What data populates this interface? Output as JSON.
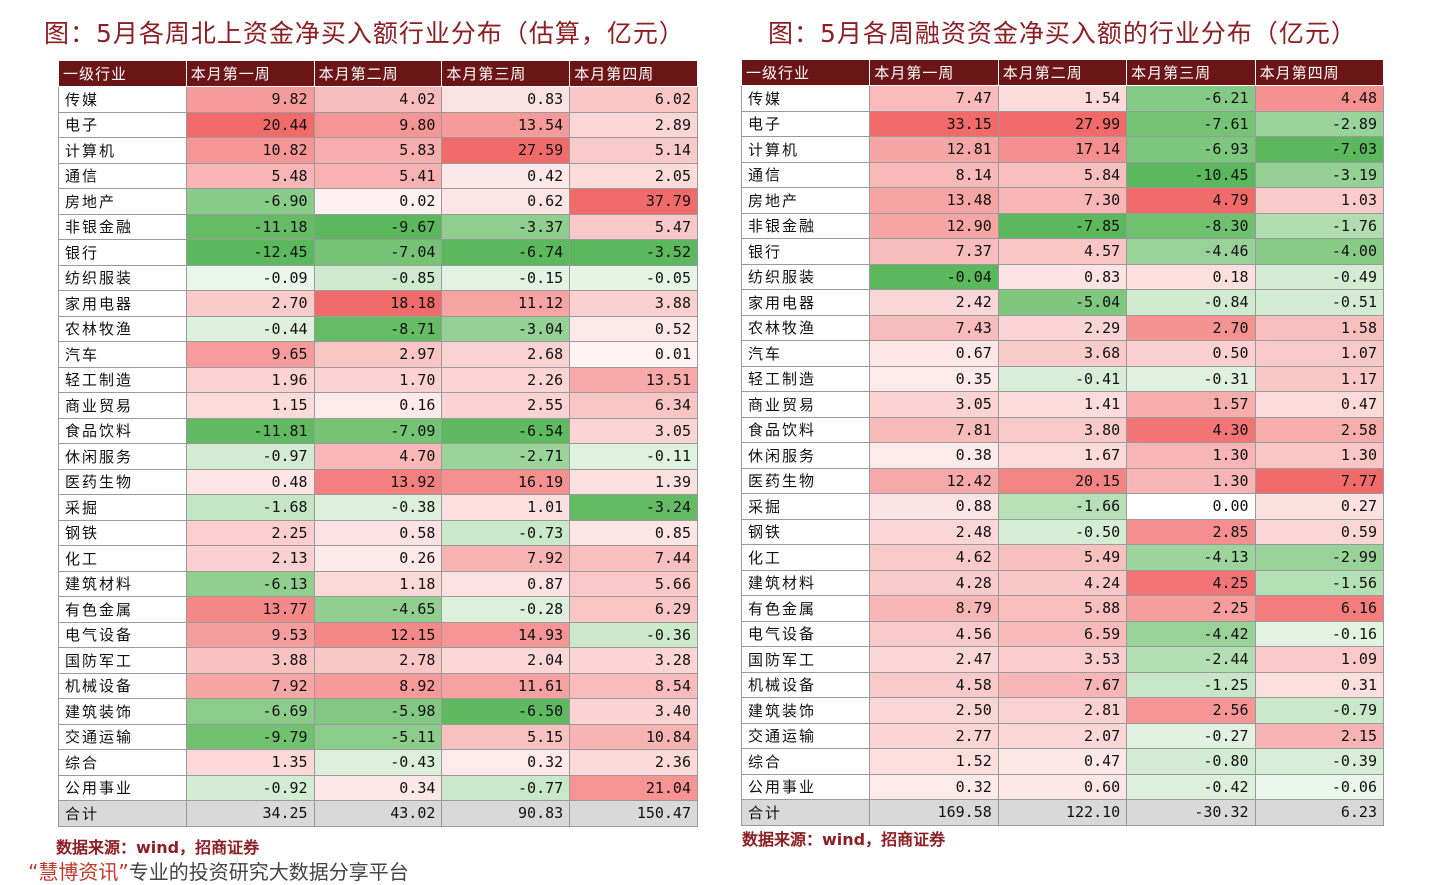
{
  "left": {
    "title": "图：5月各周北上资金净买入额行业分布（估算，亿元）",
    "headers": [
      "一级行业",
      "本月第一周",
      "本月第二周",
      "本月第三周",
      "本月第四周"
    ],
    "rows": [
      {
        "industry": "传媒",
        "values": [
          "9.82",
          "4.02",
          "0.83",
          "6.02"
        ]
      },
      {
        "industry": "电子",
        "values": [
          "20.44",
          "9.80",
          "13.54",
          "2.89"
        ]
      },
      {
        "industry": "计算机",
        "values": [
          "10.82",
          "5.83",
          "27.59",
          "5.14"
        ]
      },
      {
        "industry": "通信",
        "values": [
          "5.48",
          "5.41",
          "0.42",
          "2.05"
        ]
      },
      {
        "industry": "房地产",
        "values": [
          "-6.90",
          "0.02",
          "0.62",
          "37.79"
        ]
      },
      {
        "industry": "非银金融",
        "values": [
          "-11.18",
          "-9.67",
          "-3.37",
          "5.47"
        ]
      },
      {
        "industry": "银行",
        "values": [
          "-12.45",
          "-7.04",
          "-6.74",
          "-3.52"
        ]
      },
      {
        "industry": "纺织服装",
        "values": [
          "-0.09",
          "-0.85",
          "-0.15",
          "-0.05"
        ]
      },
      {
        "industry": "家用电器",
        "values": [
          "2.70",
          "18.18",
          "11.12",
          "3.88"
        ]
      },
      {
        "industry": "农林牧渔",
        "values": [
          "-0.44",
          "-8.71",
          "-3.04",
          "0.52"
        ]
      },
      {
        "industry": "汽车",
        "values": [
          "9.65",
          "2.97",
          "2.68",
          "0.01"
        ]
      },
      {
        "industry": "轻工制造",
        "values": [
          "1.96",
          "1.70",
          "2.26",
          "13.51"
        ]
      },
      {
        "industry": "商业贸易",
        "values": [
          "1.15",
          "0.16",
          "2.55",
          "6.34"
        ]
      },
      {
        "industry": "食品饮料",
        "values": [
          "-11.81",
          "-7.09",
          "-6.54",
          "3.05"
        ]
      },
      {
        "industry": "休闲服务",
        "values": [
          "-0.97",
          "4.70",
          "-2.71",
          "-0.11"
        ]
      },
      {
        "industry": "医药生物",
        "values": [
          "0.48",
          "13.92",
          "16.19",
          "1.39"
        ]
      },
      {
        "industry": "采掘",
        "values": [
          "-1.68",
          "-0.38",
          "1.01",
          "-3.24"
        ]
      },
      {
        "industry": "钢铁",
        "values": [
          "2.25",
          "0.58",
          "-0.73",
          "0.85"
        ]
      },
      {
        "industry": "化工",
        "values": [
          "2.13",
          "0.26",
          "7.92",
          "7.44"
        ]
      },
      {
        "industry": "建筑材料",
        "values": [
          "-6.13",
          "1.18",
          "0.87",
          "5.66"
        ]
      },
      {
        "industry": "有色金属",
        "values": [
          "13.77",
          "-4.65",
          "-0.28",
          "6.29"
        ]
      },
      {
        "industry": "电气设备",
        "values": [
          "9.53",
          "12.15",
          "14.93",
          "-0.36"
        ]
      },
      {
        "industry": "国防军工",
        "values": [
          "3.88",
          "2.78",
          "2.04",
          "3.28"
        ]
      },
      {
        "industry": "机械设备",
        "values": [
          "7.92",
          "8.92",
          "11.61",
          "8.54"
        ]
      },
      {
        "industry": "建筑装饰",
        "values": [
          "-6.69",
          "-5.98",
          "-6.50",
          "3.40"
        ]
      },
      {
        "industry": "交通运输",
        "values": [
          "-9.79",
          "-5.11",
          "5.15",
          "10.84"
        ]
      },
      {
        "industry": "综合",
        "values": [
          "1.35",
          "-0.43",
          "0.32",
          "2.36"
        ]
      },
      {
        "industry": "公用事业",
        "values": [
          "-0.92",
          "0.34",
          "-0.77",
          "21.04"
        ]
      }
    ],
    "total": {
      "industry": "合计",
      "values": [
        "34.25",
        "43.02",
        "90.83",
        "150.47"
      ]
    },
    "source": "数据来源：wind，招商证券"
  },
  "right": {
    "title": "图：5月各周融资资金净买入额的行业分布（亿元）",
    "headers": [
      "一级行业",
      "本月第一周",
      "本月第二周",
      "本月第三周",
      "本月第四周"
    ],
    "rows": [
      {
        "industry": "传媒",
        "values": [
          "7.47",
          "1.54",
          "-6.21",
          "4.48"
        ]
      },
      {
        "industry": "电子",
        "values": [
          "33.15",
          "27.99",
          "-7.61",
          "-2.89"
        ]
      },
      {
        "industry": "计算机",
        "values": [
          "12.81",
          "17.14",
          "-6.93",
          "-7.03"
        ]
      },
      {
        "industry": "通信",
        "values": [
          "8.14",
          "5.84",
          "-10.45",
          "-3.19"
        ]
      },
      {
        "industry": "房地产",
        "values": [
          "13.48",
          "7.30",
          "4.79",
          "1.03"
        ]
      },
      {
        "industry": "非银金融",
        "values": [
          "12.90",
          "-7.85",
          "-8.30",
          "-1.76"
        ]
      },
      {
        "industry": "银行",
        "values": [
          "7.37",
          "4.57",
          "-4.46",
          "-4.00"
        ]
      },
      {
        "industry": "纺织服装",
        "values": [
          "-0.04",
          "0.83",
          "0.18",
          "-0.49"
        ]
      },
      {
        "industry": "家用电器",
        "values": [
          "2.42",
          "-5.04",
          "-0.84",
          "-0.51"
        ]
      },
      {
        "industry": "农林牧渔",
        "values": [
          "7.43",
          "2.29",
          "2.70",
          "1.58"
        ]
      },
      {
        "industry": "汽车",
        "values": [
          "0.67",
          "3.68",
          "0.50",
          "1.07"
        ]
      },
      {
        "industry": "轻工制造",
        "values": [
          "0.35",
          "-0.41",
          "-0.31",
          "1.17"
        ]
      },
      {
        "industry": "商业贸易",
        "values": [
          "3.05",
          "1.41",
          "1.57",
          "0.47"
        ]
      },
      {
        "industry": "食品饮料",
        "values": [
          "7.81",
          "3.80",
          "4.30",
          "2.58"
        ]
      },
      {
        "industry": "休闲服务",
        "values": [
          "0.38",
          "1.67",
          "1.30",
          "1.30"
        ]
      },
      {
        "industry": "医药生物",
        "values": [
          "12.42",
          "20.15",
          "1.30",
          "7.77"
        ]
      },
      {
        "industry": "采掘",
        "values": [
          "0.88",
          "-1.66",
          "0.00",
          "0.27"
        ]
      },
      {
        "industry": "钢铁",
        "values": [
          "2.48",
          "-0.50",
          "2.85",
          "0.59"
        ]
      },
      {
        "industry": "化工",
        "values": [
          "4.62",
          "5.49",
          "-4.13",
          "-2.99"
        ]
      },
      {
        "industry": "建筑材料",
        "values": [
          "4.28",
          "4.24",
          "4.25",
          "-1.56"
        ]
      },
      {
        "industry": "有色金属",
        "values": [
          "8.79",
          "5.88",
          "2.25",
          "6.16"
        ]
      },
      {
        "industry": "电气设备",
        "values": [
          "4.56",
          "6.59",
          "-4.42",
          "-0.16"
        ]
      },
      {
        "industry": "国防军工",
        "values": [
          "2.47",
          "3.53",
          "-2.44",
          "1.09"
        ]
      },
      {
        "industry": "机械设备",
        "values": [
          "4.58",
          "7.67",
          "-1.25",
          "0.31"
        ]
      },
      {
        "industry": "建筑装饰",
        "values": [
          "2.50",
          "2.81",
          "2.56",
          "-0.79"
        ]
      },
      {
        "industry": "交通运输",
        "values": [
          "2.77",
          "2.07",
          "-0.27",
          "2.15"
        ]
      },
      {
        "industry": "综合",
        "values": [
          "1.52",
          "0.47",
          "-0.80",
          "-0.39"
        ]
      },
      {
        "industry": "公用事业",
        "values": [
          "0.32",
          "0.60",
          "-0.42",
          "-0.06"
        ]
      }
    ],
    "total": {
      "industry": "合计",
      "values": [
        "169.58",
        "122.10",
        "-30.32",
        "6.23"
      ]
    },
    "source": "数据来源：wind，招商证券"
  },
  "footer": {
    "brand": "“慧博资讯”",
    "tagline": "专业的投资研究大数据分享平台"
  },
  "colors": {
    "header_bg": "#6b1517",
    "title_color": "#8b1f24",
    "positive_max": "#f26b6b",
    "negative_max": "#5cb85c",
    "total_bg": "#d9d9d9"
  }
}
